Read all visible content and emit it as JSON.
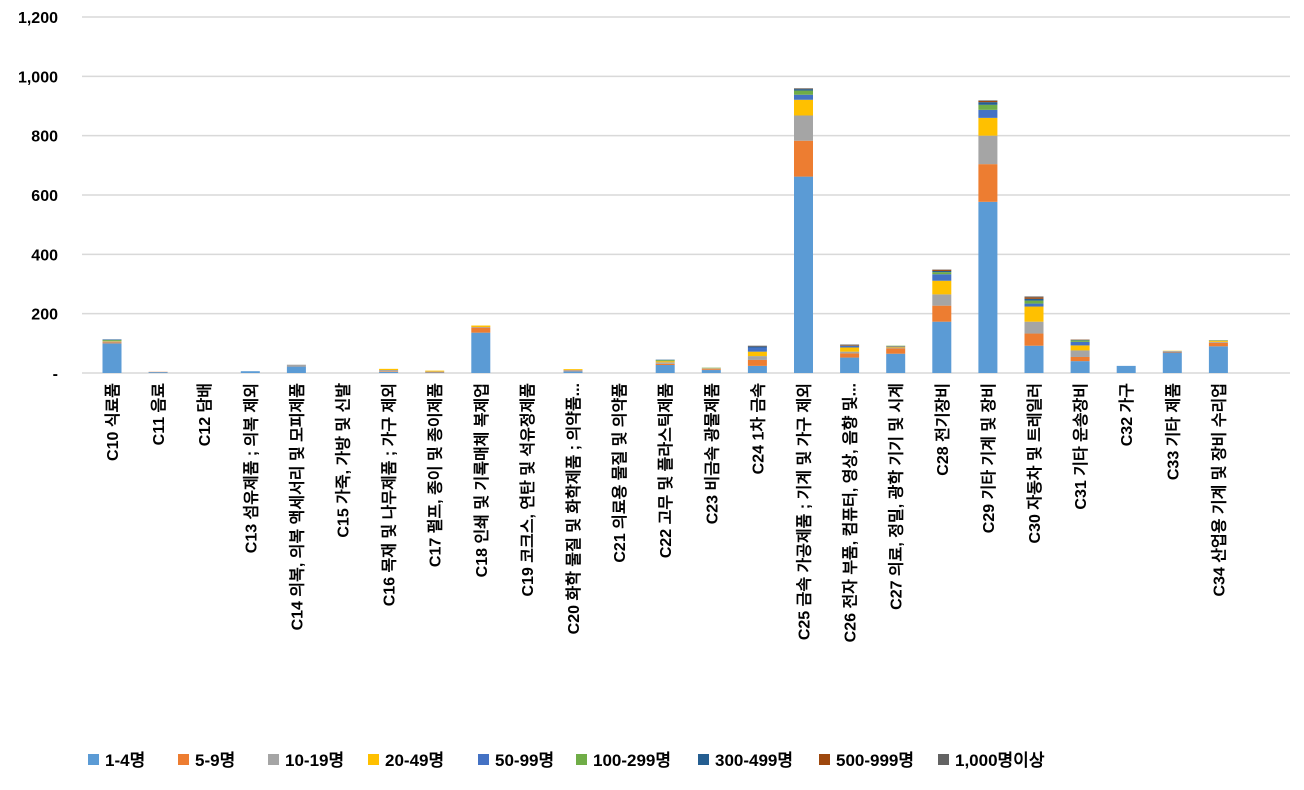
{
  "chart_data": {
    "type": "bar",
    "stacked": true,
    "title": "",
    "xlabel": "",
    "ylabel": "",
    "ylim": [
      0,
      1200
    ],
    "yticks": [
      0,
      200,
      400,
      600,
      800,
      1000,
      1200
    ],
    "ytick_labels": [
      "-",
      "200",
      "400",
      "600",
      "800",
      "1,000",
      "1,200"
    ],
    "grid": true,
    "legend_position": "bottom",
    "categories": [
      "C10 식료품",
      "C11 음료",
      "C12 담배",
      "C13 섬유제품 ; 의복 제외",
      "C14 의복, 의복 액세서리 및 모피제품",
      "C15 가죽, 가방 및 신발",
      "C16 목재 및 나무제품 ; 가구 제외",
      "C17 펄프, 종이 및 종이제품",
      "C18 인쇄 및 기록매체 복제업",
      "C19 코크스, 연탄 및 석유정제품",
      "C20 화학 물질 및 화학제품 ; 의약품...",
      "C21 의료용 물질 및 의약품",
      "C22 고무 및 플라스틱제품",
      "C23 비금속 광물제품",
      "C24 1차 금속",
      "C25 금속 가공제품 ; 기계 및 가구 제외",
      "C26 전자 부품, 컴퓨터, 영상, 음향 및...",
      "C27 의료, 정밀, 광학 기기 및 시계",
      "C28 전기장비",
      "C29 기타 기계 및 장비",
      "C30 자동차 및 트레일러",
      "C31 기타 운송장비",
      "C32 가구",
      "C33 기타 제품",
      "C34 산업용 기계 및 장비 수리업"
    ],
    "series": [
      {
        "name": "1-4명",
        "color": "#5B9BD5",
        "values": [
          100,
          3,
          0,
          6,
          22,
          0,
          4,
          2,
          136,
          0,
          6,
          0,
          27,
          10,
          24,
          662,
          52,
          65,
          173,
          577,
          92,
          40,
          24,
          69,
          90
        ]
      },
      {
        "name": "5-9명",
        "color": "#ED7D31",
        "values": [
          3,
          1,
          0,
          0,
          1,
          0,
          2,
          2,
          17,
          0,
          2,
          0,
          4,
          3,
          20,
          121,
          14,
          18,
          54,
          127,
          41,
          14,
          0,
          2,
          12
        ]
      },
      {
        "name": "10-19명",
        "color": "#A5A5A5",
        "values": [
          2,
          0,
          0,
          0,
          5,
          0,
          4,
          1,
          2,
          0,
          2,
          0,
          5,
          3,
          13,
          85,
          6,
          3,
          38,
          96,
          40,
          22,
          0,
          3,
          3
        ]
      },
      {
        "name": "20-49명",
        "color": "#FFC000",
        "values": [
          2,
          0,
          0,
          0,
          0,
          0,
          4,
          3,
          5,
          0,
          3,
          0,
          4,
          1,
          15,
          53,
          14,
          3,
          46,
          60,
          51,
          17,
          0,
          1,
          4
        ]
      },
      {
        "name": "50-99명",
        "color": "#4472C4",
        "values": [
          1,
          0,
          0,
          0,
          0,
          0,
          0,
          0,
          0,
          0,
          0,
          0,
          1,
          0,
          14,
          17,
          5,
          2,
          22,
          27,
          10,
          12,
          0,
          0,
          1
        ]
      },
      {
        "name": "100-299명",
        "color": "#70AD47",
        "values": [
          3,
          0,
          0,
          0,
          0,
          0,
          0,
          0,
          0,
          0,
          0,
          0,
          3,
          1,
          0,
          14,
          0,
          1,
          7,
          17,
          10,
          5,
          0,
          0,
          1
        ]
      },
      {
        "name": "300-499명",
        "color": "#255E91",
        "values": [
          2,
          0,
          0,
          0,
          0,
          0,
          0,
          0,
          0,
          0,
          0,
          0,
          1,
          0,
          4,
          5,
          1,
          0,
          4,
          9,
          6,
          2,
          0,
          0,
          0
        ]
      },
      {
        "name": "500-999명",
        "color": "#9E480E",
        "values": [
          0,
          0,
          0,
          0,
          0,
          0,
          0,
          0,
          0,
          0,
          0,
          0,
          0,
          0,
          1,
          1,
          2,
          0,
          4,
          4,
          5,
          1,
          0,
          0,
          0
        ]
      },
      {
        "name": "1,000명이상",
        "color": "#636363",
        "values": [
          0,
          0,
          0,
          0,
          0,
          0,
          0,
          0,
          0,
          0,
          0,
          0,
          0,
          0,
          1,
          2,
          2,
          0,
          1,
          2,
          3,
          0,
          0,
          0,
          0
        ]
      }
    ]
  }
}
